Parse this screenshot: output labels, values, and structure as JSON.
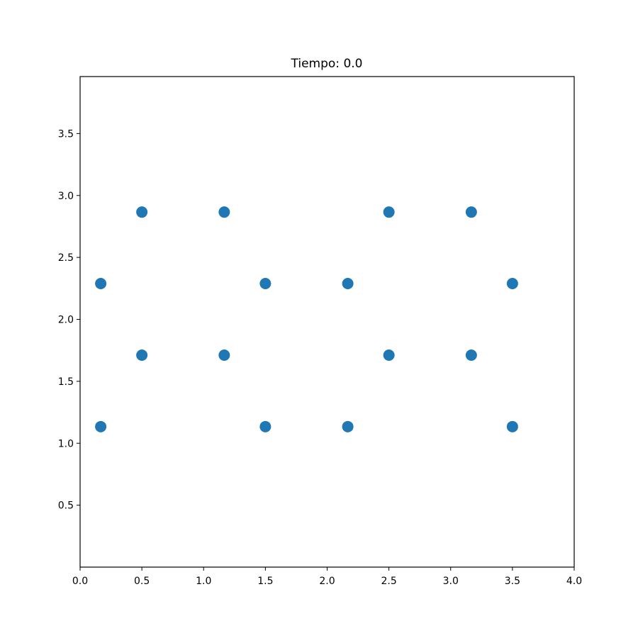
{
  "chart_data": {
    "type": "scatter",
    "title": "Tiempo: 0.0",
    "xlabel": "",
    "ylabel": "",
    "xlim": [
      0.0,
      4.0
    ],
    "ylim": [
      0.0,
      3.96
    ],
    "grid": false,
    "x_ticks": [
      "0.0",
      "0.5",
      "1.0",
      "1.5",
      "2.0",
      "2.5",
      "3.0",
      "3.5",
      "4.0"
    ],
    "y_ticks": [
      "0.5",
      "1.0",
      "1.5",
      "2.0",
      "2.5",
      "3.0",
      "3.5"
    ],
    "marker_color": "#1f77b4",
    "series": [
      {
        "points": [
          [
            0.167,
            1.134
          ],
          [
            0.5,
            1.711
          ],
          [
            1.167,
            1.711
          ],
          [
            1.5,
            1.134
          ],
          [
            2.167,
            1.134
          ],
          [
            2.5,
            1.711
          ],
          [
            3.167,
            1.711
          ],
          [
            3.5,
            1.134
          ],
          [
            0.167,
            2.289
          ],
          [
            0.5,
            2.866
          ],
          [
            1.167,
            2.866
          ],
          [
            1.5,
            2.289
          ],
          [
            2.167,
            2.289
          ],
          [
            2.5,
            2.866
          ],
          [
            3.167,
            2.866
          ],
          [
            3.5,
            2.289
          ]
        ]
      }
    ]
  }
}
